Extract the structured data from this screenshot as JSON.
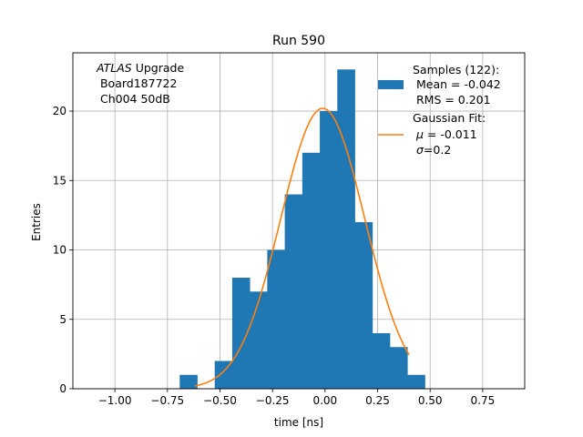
{
  "chart_data": {
    "type": "bar",
    "title": "Run 590",
    "xlabel": "time [ns]",
    "ylabel": "Entries",
    "xlim": [
      -1.2,
      0.95
    ],
    "ylim": [
      0,
      24.2
    ],
    "xticks": [
      -1.0,
      -0.75,
      -0.5,
      -0.25,
      0.0,
      0.25,
      0.5,
      0.75
    ],
    "xtick_labels": [
      "−1.00",
      "−0.75",
      "−0.50",
      "−0.25",
      "0.00",
      "0.25",
      "0.50",
      "0.75"
    ],
    "yticks": [
      0,
      5,
      10,
      15,
      20
    ],
    "ytick_labels": [
      "0",
      "5",
      "10",
      "15",
      "20"
    ],
    "grid": true,
    "annotation": {
      "line1_italic": "ATLAS",
      "line1_rest": " Upgrade",
      "line2": " Board187722",
      "line3": " Ch004 50dB"
    },
    "histogram": {
      "name": "Samples (122):",
      "color": "#1f77b4",
      "bin_width": 0.0833,
      "bin_lefts": [
        -0.6917,
        -0.6083,
        -0.525,
        -0.4417,
        -0.3583,
        -0.275,
        -0.1917,
        -0.1083,
        -0.025,
        0.0583,
        0.1417,
        0.225,
        0.3083,
        0.3917
      ],
      "counts": [
        1,
        0,
        2,
        8,
        7,
        10,
        14,
        17,
        20,
        23,
        12,
        4,
        3,
        1
      ]
    },
    "fit": {
      "name": "Gaussian Fit:",
      "color": "#ff7f0e",
      "mu": -0.011,
      "sigma": 0.2,
      "amplitude": 20.2,
      "x_range": [
        -0.62,
        0.4
      ]
    },
    "legend": {
      "placement": "upper right",
      "hist_lines": [
        "Samples (122):",
        " Mean = -0.042",
        " RMS = 0.201"
      ],
      "fit_title": "Gaussian Fit:",
      "fit_mu_symbol": "μ",
      "fit_mu_value": " = -0.011",
      "fit_sigma_symbol": "σ",
      "fit_sigma_value": "=0.2"
    }
  }
}
